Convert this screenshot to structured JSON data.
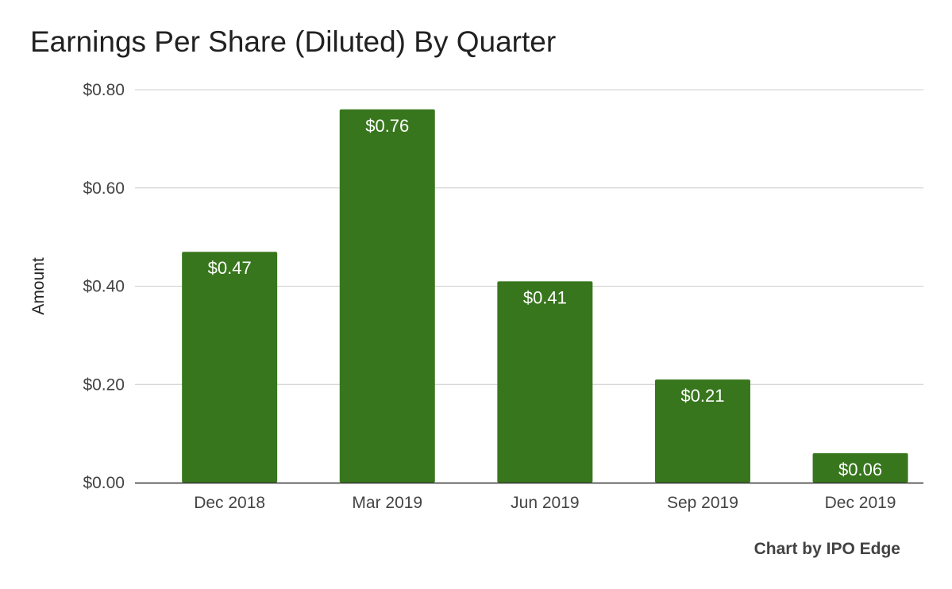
{
  "chart_data": {
    "type": "bar",
    "title": "Earnings Per Share (Diluted) By Quarter",
    "xlabel": "",
    "ylabel": "Amount",
    "categories": [
      "Dec 2018",
      "Mar 2019",
      "Jun 2019",
      "Sep 2019",
      "Dec 2019"
    ],
    "values": [
      0.47,
      0.76,
      0.41,
      0.21,
      0.06
    ],
    "data_labels": [
      "$0.47",
      "$0.76",
      "$0.41",
      "$0.21",
      "$0.06"
    ],
    "ylim": [
      0,
      0.8
    ],
    "yticks": [
      0,
      0.2,
      0.4,
      0.6,
      0.8
    ],
    "ytick_labels": [
      "$0.00",
      "$0.20",
      "$0.40",
      "$0.60",
      "$0.80"
    ],
    "grid": true,
    "legend": "none",
    "bar_color": "#38761d",
    "label_color": "#ffffff"
  },
  "credit": "Chart by IPO Edge"
}
